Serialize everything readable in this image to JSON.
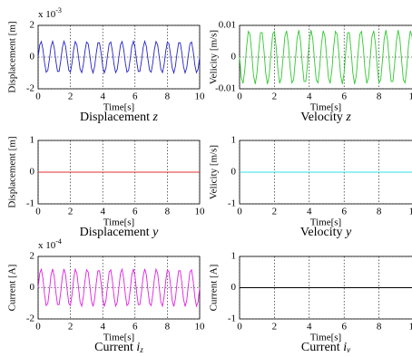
{
  "chart_data": [
    {
      "type": "line",
      "title": "Displacement",
      "title_var": "z",
      "xlabel": "Time[s]",
      "ylabel": "Displacement [m]",
      "axis_multiplier": {
        "base": "x 10",
        "exponent": "-3"
      },
      "xlim": [
        0,
        10
      ],
      "xticks": [
        0,
        2,
        4,
        6,
        8,
        10
      ],
      "ylim": [
        -2,
        2
      ],
      "yticks": [
        -2,
        0,
        2
      ],
      "grid": true,
      "color": "#2424c8",
      "x": [
        0,
        0.1,
        0.2,
        0.3,
        0.4,
        0.5,
        0.6,
        0.7,
        0.8,
        0.9,
        1,
        1.1,
        1.2,
        1.3,
        1.4,
        1.5,
        1.6,
        1.7,
        1.8,
        1.9,
        2,
        2.1,
        2.2,
        2.3,
        2.4,
        2.5,
        2.6,
        2.7,
        2.8,
        2.9,
        3,
        3.1,
        3.2,
        3.3,
        3.4,
        3.5,
        3.6,
        3.7,
        3.8,
        3.9,
        4,
        4.1,
        4.2,
        4.3,
        4.4,
        4.5,
        4.6,
        4.7,
        4.8,
        4.9,
        5,
        5.1,
        5.2,
        5.3,
        5.4,
        5.5,
        5.6,
        5.7,
        5.8,
        5.9,
        6,
        6.1,
        6.2,
        6.3,
        6.4,
        6.5,
        6.6,
        6.7,
        6.8,
        6.9,
        7,
        7.1,
        7.2,
        7.3,
        7.4,
        7.5,
        7.6,
        7.7,
        7.8,
        7.9,
        8,
        8.1,
        8.2,
        8.3,
        8.4,
        8.5,
        8.6,
        8.7,
        8.8,
        8.9,
        9,
        9.1,
        9.2,
        9.3,
        9.4,
        9.5,
        9.6,
        9.7,
        9.8,
        9.9,
        10
      ],
      "values": [
        0,
        0.77,
        0.98,
        0.48,
        -0.37,
        -0.95,
        -0.84,
        -0.13,
        0.68,
        1,
        0.59,
        -0.25,
        -0.9,
        -0.9,
        -0.25,
        0.59,
        1,
        0.68,
        -0.13,
        -0.84,
        -0.95,
        -0.37,
        0.48,
        0.98,
        0.77,
        0,
        -0.77,
        -0.98,
        -0.48,
        0.37,
        0.95,
        0.84,
        0.13,
        -0.68,
        -1,
        -0.59,
        0.25,
        0.9,
        0.9,
        0.25,
        -0.59,
        -1,
        -0.68,
        0.13,
        0.84,
        0.95,
        0.37,
        -0.48,
        -0.98,
        -0.77,
        0,
        0.77,
        0.98,
        0.48,
        -0.37,
        -0.95,
        -0.84,
        -0.13,
        0.68,
        1,
        0.59,
        -0.25,
        -0.9,
        -0.9,
        -0.25,
        0.59,
        1,
        0.68,
        -0.13,
        -0.84,
        -0.95,
        -0.37,
        0.48,
        0.98,
        0.77,
        0,
        -0.77,
        -0.98,
        -0.48,
        0.37,
        0.95,
        0.84,
        0.13,
        -0.68,
        -1,
        -0.59,
        0.25,
        0.9,
        0.9,
        0.25,
        -0.59,
        -1,
        -0.68,
        0.13,
        0.84,
        0.95,
        0.37,
        -0.48,
        -0.98,
        -0.77,
        0
      ]
    },
    {
      "type": "line",
      "title": "Velocity",
      "title_var": "z",
      "xlabel": "Time[s]",
      "ylabel": "Velicity [m/s]",
      "xlim": [
        0,
        10
      ],
      "xticks": [
        0,
        2,
        4,
        6,
        8,
        10
      ],
      "ylim": [
        -0.01,
        0.01
      ],
      "yticks": [
        -0.01,
        0,
        0.01
      ],
      "grid": true,
      "color": "#30c830",
      "x": [
        0,
        0.1,
        0.2,
        0.3,
        0.4,
        0.5,
        0.6,
        0.7,
        0.8,
        0.9,
        1,
        1.1,
        1.2,
        1.3,
        1.4,
        1.5,
        1.6,
        1.7,
        1.8,
        1.9,
        2,
        2.1,
        2.2,
        2.3,
        2.4,
        2.5,
        2.6,
        2.7,
        2.8,
        2.9,
        3,
        3.1,
        3.2,
        3.3,
        3.4,
        3.5,
        3.6,
        3.7,
        3.8,
        3.9,
        4,
        4.1,
        4.2,
        4.3,
        4.4,
        4.5,
        4.6,
        4.7,
        4.8,
        4.9,
        5,
        5.1,
        5.2,
        5.3,
        5.4,
        5.5,
        5.6,
        5.7,
        5.8,
        5.9,
        6,
        6.1,
        6.2,
        6.3,
        6.4,
        6.5,
        6.6,
        6.7,
        6.8,
        6.9,
        7,
        7.1,
        7.2,
        7.3,
        7.4,
        7.5,
        7.6,
        7.7,
        7.8,
        7.9,
        8,
        8.1,
        8.2,
        8.3,
        8.4,
        8.5,
        8.6,
        8.7,
        8.8,
        8.9,
        9,
        9.1,
        9.2,
        9.3,
        9.4,
        9.5,
        9.6,
        9.7,
        9.8,
        9.9,
        10
      ],
      "values": [
        0,
        -0.0065,
        -0.0083,
        -0.0041,
        0.0031,
        0.0081,
        0.0072,
        0.0011,
        -0.0058,
        -0.0085,
        -0.005,
        0.0021,
        0.0077,
        0.0077,
        0.0021,
        -0.005,
        -0.0085,
        -0.0058,
        0.0011,
        0.0072,
        0.0081,
        0.0031,
        -0.0041,
        -0.0083,
        -0.0065,
        0,
        0.0065,
        0.0083,
        0.0041,
        -0.0031,
        -0.0081,
        -0.0072,
        -0.0011,
        0.0058,
        0.0085,
        0.005,
        -0.0021,
        -0.0077,
        -0.0077,
        -0.0021,
        0.005,
        0.0085,
        0.0058,
        -0.0011,
        -0.0072,
        -0.0081,
        -0.0031,
        0.0041,
        0.0083,
        0.0065,
        0,
        -0.0065,
        -0.0083,
        -0.0041,
        0.0031,
        0.0081,
        0.0072,
        0.0011,
        -0.0058,
        -0.0085,
        -0.005,
        0.0021,
        0.0077,
        0.0077,
        0.0021,
        -0.005,
        -0.0085,
        -0.0058,
        0.0011,
        0.0072,
        0.0081,
        0.0031,
        -0.0041,
        -0.0083,
        -0.0065,
        0,
        0.0065,
        0.0083,
        0.0041,
        -0.0031,
        -0.0081,
        -0.0072,
        -0.0011,
        0.0058,
        0.0085,
        0.005,
        -0.0021,
        -0.0077,
        -0.0077,
        -0.0021,
        0.005,
        0.0085,
        0.0058,
        -0.0011,
        -0.0072,
        -0.0081,
        -0.0031,
        0.0041,
        0.0083,
        0.0065,
        0
      ]
    },
    {
      "type": "line",
      "title": "Displacement",
      "title_var": "y",
      "xlabel": "Time[s]",
      "ylabel": "Displacement [m]",
      "xlim": [
        0,
        10
      ],
      "xticks": [
        0,
        2,
        4,
        6,
        8,
        10
      ],
      "ylim": [
        -1,
        1
      ],
      "yticks": [
        -1,
        0,
        1
      ],
      "grid": true,
      "color": "#e03030",
      "x": [
        0,
        10
      ],
      "values": [
        0,
        0
      ]
    },
    {
      "type": "line",
      "title": "Velocity",
      "title_var": "y",
      "xlabel": "Time[s]",
      "ylabel": "Velicity [m/s]",
      "xlim": [
        0,
        10
      ],
      "xticks": [
        0,
        2,
        4,
        6,
        8,
        10
      ],
      "ylim": [
        -1,
        1
      ],
      "yticks": [
        -1,
        0,
        1
      ],
      "grid": true,
      "color": "#30e0e8",
      "x": [
        0,
        10
      ],
      "values": [
        0,
        0
      ]
    },
    {
      "type": "line",
      "title": "Current",
      "title_var": "i",
      "title_sub": "z",
      "xlabel": "Time[s]",
      "ylabel": "Current [A]",
      "axis_multiplier": {
        "base": "x 10",
        "exponent": "-4"
      },
      "xlim": [
        0,
        10
      ],
      "xticks": [
        0,
        2,
        4,
        6,
        8,
        10
      ],
      "ylim": [
        -2,
        2
      ],
      "yticks": [
        -2,
        0,
        2
      ],
      "grid": true,
      "color": "#e020e0",
      "x": [
        0,
        0.1,
        0.2,
        0.3,
        0.4,
        0.5,
        0.6,
        0.7,
        0.8,
        0.9,
        1,
        1.1,
        1.2,
        1.3,
        1.4,
        1.5,
        1.6,
        1.7,
        1.8,
        1.9,
        2,
        2.1,
        2.2,
        2.3,
        2.4,
        2.5,
        2.6,
        2.7,
        2.8,
        2.9,
        3,
        3.1,
        3.2,
        3.3,
        3.4,
        3.5,
        3.6,
        3.7,
        3.8,
        3.9,
        4,
        4.1,
        4.2,
        4.3,
        4.4,
        4.5,
        4.6,
        4.7,
        4.8,
        4.9,
        5,
        5.1,
        5.2,
        5.3,
        5.4,
        5.5,
        5.6,
        5.7,
        5.8,
        5.9,
        6,
        6.1,
        6.2,
        6.3,
        6.4,
        6.5,
        6.6,
        6.7,
        6.8,
        6.9,
        7,
        7.1,
        7.2,
        7.3,
        7.4,
        7.5,
        7.6,
        7.7,
        7.8,
        7.9,
        8,
        8.1,
        8.2,
        8.3,
        8.4,
        8.5,
        8.6,
        8.7,
        8.8,
        8.9,
        9,
        9.1,
        9.2,
        9.3,
        9.4,
        9.5,
        9.6,
        9.7,
        9.8,
        9.9,
        10
      ],
      "values": [
        0,
        0.92,
        1.18,
        0.58,
        -0.44,
        -1.14,
        -1.01,
        -0.16,
        0.82,
        1.2,
        0.71,
        -0.3,
        -1.08,
        -1.08,
        -0.3,
        0.71,
        1.2,
        0.82,
        -0.16,
        -1.01,
        -1.14,
        -0.44,
        0.58,
        1.18,
        0.92,
        0,
        -0.92,
        -1.18,
        -0.58,
        0.44,
        1.14,
        1.01,
        0.16,
        -0.82,
        -1.2,
        -0.71,
        0.3,
        1.08,
        1.08,
        0.3,
        -0.71,
        -1.2,
        -0.82,
        0.16,
        1.01,
        1.14,
        0.44,
        -0.58,
        -1.18,
        -0.92,
        0,
        0.92,
        1.18,
        0.58,
        -0.44,
        -1.14,
        -1.01,
        -0.16,
        0.82,
        1.2,
        0.71,
        -0.3,
        -1.08,
        -1.08,
        -0.3,
        0.71,
        1.2,
        0.82,
        -0.16,
        -1.01,
        -1.14,
        -0.44,
        0.58,
        1.18,
        0.92,
        0,
        -0.92,
        -1.18,
        -0.58,
        0.44,
        1.14,
        1.01,
        0.16,
        -0.82,
        -1.2,
        -0.71,
        0.3,
        1.08,
        1.08,
        0.3,
        -0.71,
        -1.2,
        -0.82,
        0.16,
        1.01,
        1.14,
        0.44,
        -0.58,
        -1.18,
        -0.92,
        0
      ]
    },
    {
      "type": "line",
      "title": "Current",
      "title_var": "i",
      "title_sub": "v",
      "xlabel": "Time[s]",
      "ylabel": "Current [A]",
      "xlim": [
        0,
        10
      ],
      "xticks": [
        0,
        2,
        4,
        6,
        8,
        10
      ],
      "ylim": [
        -1,
        1
      ],
      "yticks": [
        -1,
        0,
        1
      ],
      "grid": true,
      "color": "#000000",
      "x": [
        0,
        10
      ],
      "values": [
        0,
        0
      ]
    }
  ]
}
